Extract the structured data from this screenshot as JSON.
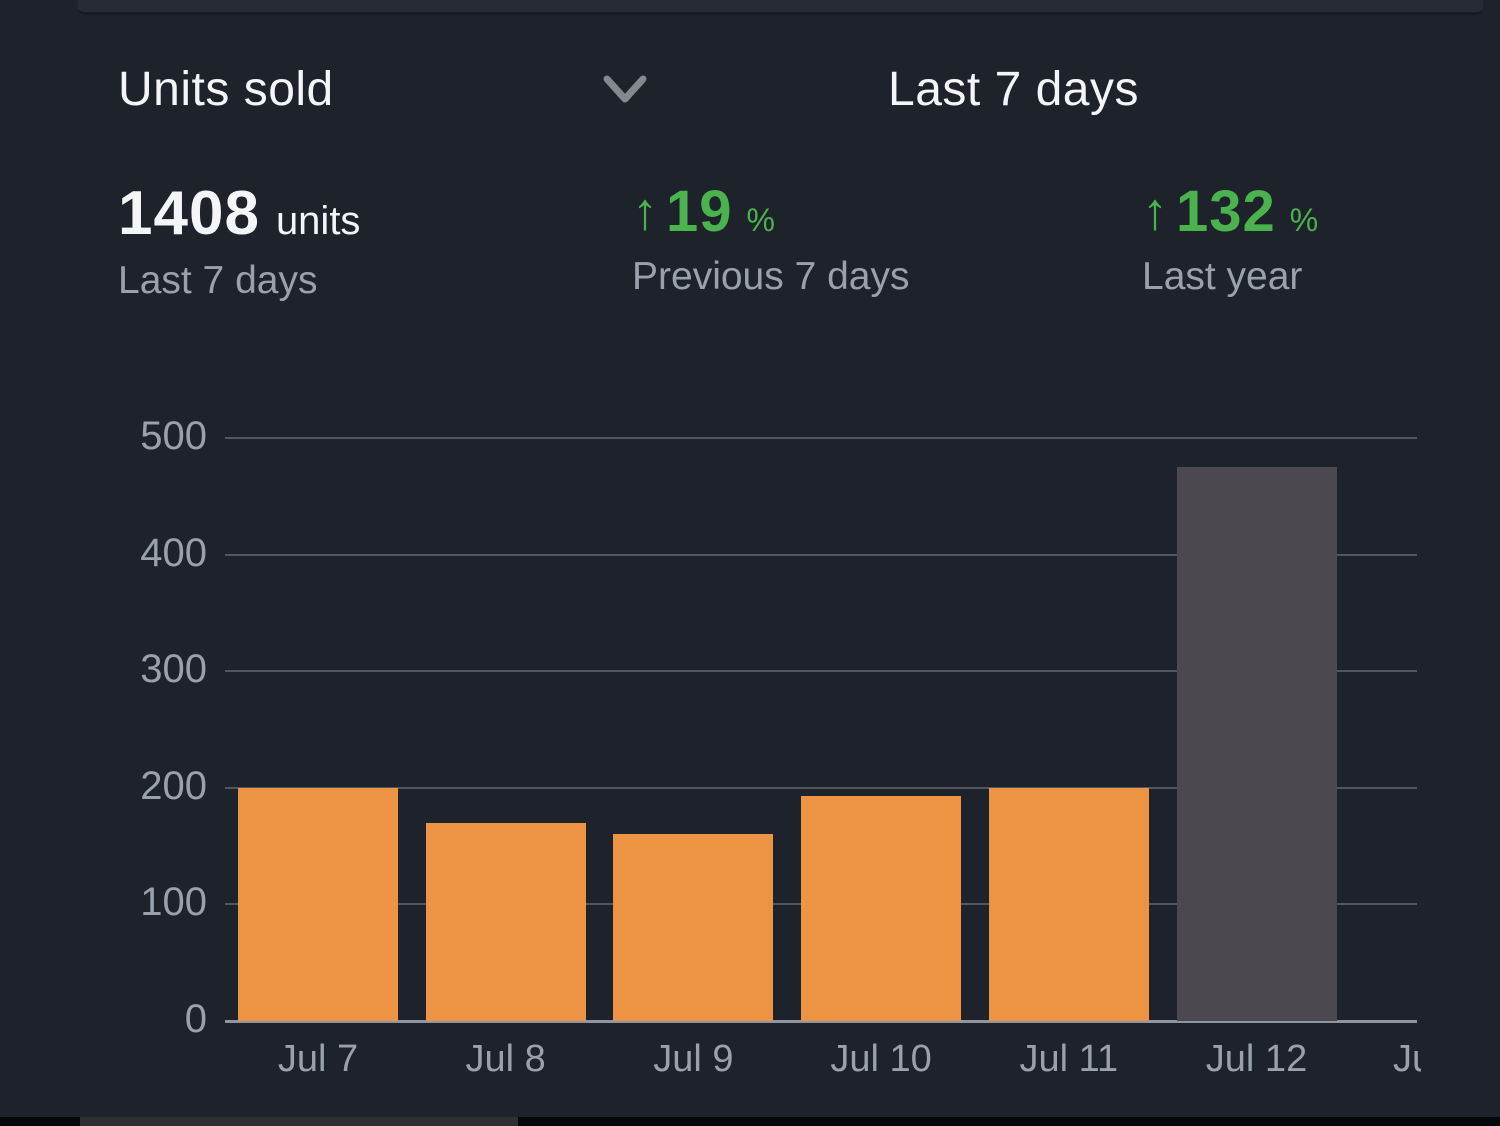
{
  "header": {
    "title": "Units sold",
    "range_label": "Last 7 days"
  },
  "stats": {
    "0": {
      "value": "1408",
      "unit": "units",
      "caption": "Last 7 days"
    },
    "1": {
      "value": "19",
      "unit": "%",
      "arrow": "↑",
      "caption": "Previous 7 days"
    },
    "2": {
      "value": "132",
      "unit": "%",
      "arrow": "↑",
      "caption": "Last year"
    }
  },
  "colors": {
    "background": "#1e222b",
    "text_primary": "#f3f5f7",
    "text_muted": "#99a1ac",
    "positive_green": "#4bb34e",
    "bar_orange": "#ec9444",
    "bar_gray": "#4b494f",
    "gridline": "#515660",
    "baseline": "#8f96a1"
  },
  "chart_data": {
    "type": "bar",
    "title": "Units sold",
    "xlabel": "",
    "ylabel": "",
    "categories": [
      "Jul 7",
      "Jul 8",
      "Jul 9",
      "Jul 10",
      "Jul 11",
      "Jul 12"
    ],
    "values": [
      200,
      170,
      160,
      193,
      200,
      475
    ],
    "bar_colors": [
      "#ec9444",
      "#ec9444",
      "#ec9444",
      "#ec9444",
      "#ec9444",
      "#4b494f"
    ],
    "partial_next_label": "Ju",
    "y_ticks": [
      {
        "value": 0,
        "label": "0"
      },
      {
        "value": 100,
        "label": "100"
      },
      {
        "value": 200,
        "label": "200"
      },
      {
        "value": 300,
        "label": "300"
      },
      {
        "value": 400,
        "label": "400"
      },
      {
        "value": 500,
        "label": "500"
      }
    ],
    "ylim": [
      0,
      500
    ],
    "grid": true,
    "legend": false
  }
}
